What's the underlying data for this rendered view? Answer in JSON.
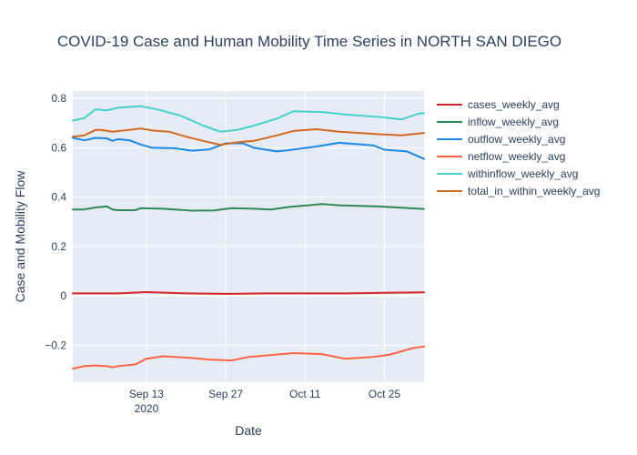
{
  "chart_data": {
    "type": "line",
    "title": "COVID-19 Case and Human Mobility Time Series in NORTH SAN DIEGO",
    "xlabel": "Date",
    "ylabel": "Case and Mobility Flow",
    "ylim": [
      -0.35,
      0.83
    ],
    "yticks": [
      {
        "value": 0.8,
        "label": "0.8"
      },
      {
        "value": 0.6,
        "label": "0.6"
      },
      {
        "value": 0.4,
        "label": "0.4"
      },
      {
        "value": 0.2,
        "label": "0.2"
      },
      {
        "value": 0,
        "label": "0"
      },
      {
        "value": -0.2,
        "label": "−0.2"
      }
    ],
    "xrange": [
      "2020-08-31",
      "2020-11-01"
    ],
    "xticks": [
      {
        "date": "2020-09-13",
        "label": "Sep 13",
        "sublabel": "2020"
      },
      {
        "date": "2020-09-27",
        "label": "Sep 27",
        "sublabel": ""
      },
      {
        "date": "2020-10-11",
        "label": "Oct 11",
        "sublabel": ""
      },
      {
        "date": "2020-10-25",
        "label": "Oct 25",
        "sublabel": ""
      }
    ],
    "grid": true,
    "legend_position": "right",
    "series": [
      {
        "name": "cases_weekly_avg",
        "color": "#d62728",
        "points": [
          [
            "2020-08-31",
            0.01
          ],
          [
            "2020-09-08",
            0.01
          ],
          [
            "2020-09-13",
            0.015
          ],
          [
            "2020-09-20",
            0.01
          ],
          [
            "2020-09-27",
            0.008
          ],
          [
            "2020-10-04",
            0.01
          ],
          [
            "2020-10-11",
            0.01
          ],
          [
            "2020-10-18",
            0.01
          ],
          [
            "2020-10-25",
            0.012
          ],
          [
            "2020-11-01",
            0.014
          ]
        ]
      },
      {
        "name": "inflow_weekly_avg",
        "color": "#2e8b57",
        "points": [
          [
            "2020-08-31",
            0.35
          ],
          [
            "2020-09-02",
            0.35
          ],
          [
            "2020-09-04",
            0.358
          ],
          [
            "2020-09-06",
            0.362
          ],
          [
            "2020-09-07",
            0.35
          ],
          [
            "2020-09-08",
            0.347
          ],
          [
            "2020-09-11",
            0.347
          ],
          [
            "2020-09-12",
            0.355
          ],
          [
            "2020-09-16",
            0.353
          ],
          [
            "2020-09-21",
            0.345
          ],
          [
            "2020-09-25",
            0.346
          ],
          [
            "2020-09-28",
            0.355
          ],
          [
            "2020-10-02",
            0.353
          ],
          [
            "2020-10-05",
            0.35
          ],
          [
            "2020-10-08",
            0.36
          ],
          [
            "2020-10-14",
            0.372
          ],
          [
            "2020-10-17",
            0.367
          ],
          [
            "2020-10-24",
            0.362
          ],
          [
            "2020-11-01",
            0.352
          ]
        ]
      },
      {
        "name": "outflow_weekly_avg",
        "color": "#1e88e5",
        "points": [
          [
            "2020-08-31",
            0.64
          ],
          [
            "2020-09-02",
            0.63
          ],
          [
            "2020-09-04",
            0.64
          ],
          [
            "2020-09-06",
            0.638
          ],
          [
            "2020-09-07",
            0.628
          ],
          [
            "2020-09-08",
            0.635
          ],
          [
            "2020-09-10",
            0.63
          ],
          [
            "2020-09-12",
            0.613
          ],
          [
            "2020-09-14",
            0.6
          ],
          [
            "2020-09-18",
            0.598
          ],
          [
            "2020-09-21",
            0.588
          ],
          [
            "2020-09-24",
            0.593
          ],
          [
            "2020-09-27",
            0.618
          ],
          [
            "2020-09-30",
            0.618
          ],
          [
            "2020-10-02",
            0.6
          ],
          [
            "2020-10-06",
            0.585
          ],
          [
            "2020-10-08",
            0.59
          ],
          [
            "2020-10-13",
            0.605
          ],
          [
            "2020-10-17",
            0.62
          ],
          [
            "2020-10-23",
            0.61
          ],
          [
            "2020-10-25",
            0.592
          ],
          [
            "2020-10-29",
            0.585
          ],
          [
            "2020-11-01",
            0.555
          ]
        ]
      },
      {
        "name": "netflow_weekly_avg",
        "color": "#ff6347",
        "points": [
          [
            "2020-08-31",
            -0.295
          ],
          [
            "2020-09-02",
            -0.285
          ],
          [
            "2020-09-04",
            -0.282
          ],
          [
            "2020-09-06",
            -0.285
          ],
          [
            "2020-09-07",
            -0.29
          ],
          [
            "2020-09-08",
            -0.285
          ],
          [
            "2020-09-11",
            -0.278
          ],
          [
            "2020-09-13",
            -0.255
          ],
          [
            "2020-09-16",
            -0.245
          ],
          [
            "2020-09-21",
            -0.252
          ],
          [
            "2020-09-24",
            -0.258
          ],
          [
            "2020-09-28",
            -0.262
          ],
          [
            "2020-10-01",
            -0.248
          ],
          [
            "2020-10-06",
            -0.238
          ],
          [
            "2020-10-09",
            -0.232
          ],
          [
            "2020-10-14",
            -0.236
          ],
          [
            "2020-10-18",
            -0.255
          ],
          [
            "2020-10-23",
            -0.248
          ],
          [
            "2020-10-26",
            -0.238
          ],
          [
            "2020-10-30",
            -0.212
          ],
          [
            "2020-11-01",
            -0.205
          ]
        ]
      },
      {
        "name": "withinflow_weekly_avg",
        "color": "#48d1cc",
        "points": [
          [
            "2020-08-31",
            0.71
          ],
          [
            "2020-09-02",
            0.72
          ],
          [
            "2020-09-04",
            0.755
          ],
          [
            "2020-09-06",
            0.752
          ],
          [
            "2020-09-08",
            0.762
          ],
          [
            "2020-09-12",
            0.768
          ],
          [
            "2020-09-15",
            0.755
          ],
          [
            "2020-09-19",
            0.73
          ],
          [
            "2020-09-23",
            0.69
          ],
          [
            "2020-09-26",
            0.665
          ],
          [
            "2020-09-29",
            0.672
          ],
          [
            "2020-10-02",
            0.69
          ],
          [
            "2020-10-06",
            0.718
          ],
          [
            "2020-10-09",
            0.748
          ],
          [
            "2020-10-14",
            0.745
          ],
          [
            "2020-10-18",
            0.735
          ],
          [
            "2020-10-24",
            0.725
          ],
          [
            "2020-10-28",
            0.715
          ],
          [
            "2020-10-31",
            0.738
          ],
          [
            "2020-11-01",
            0.74
          ]
        ]
      },
      {
        "name": "total_in_within_weekly_avg",
        "color": "#d2691e",
        "points": [
          [
            "2020-08-31",
            0.645
          ],
          [
            "2020-09-02",
            0.65
          ],
          [
            "2020-09-04",
            0.672
          ],
          [
            "2020-09-05",
            0.672
          ],
          [
            "2020-09-07",
            0.665
          ],
          [
            "2020-09-09",
            0.67
          ],
          [
            "2020-09-12",
            0.678
          ],
          [
            "2020-09-14",
            0.67
          ],
          [
            "2020-09-17",
            0.665
          ],
          [
            "2020-09-20",
            0.645
          ],
          [
            "2020-09-23",
            0.628
          ],
          [
            "2020-09-26",
            0.612
          ],
          [
            "2020-09-29",
            0.622
          ],
          [
            "2020-10-02",
            0.628
          ],
          [
            "2020-10-06",
            0.65
          ],
          [
            "2020-10-09",
            0.668
          ],
          [
            "2020-10-13",
            0.675
          ],
          [
            "2020-10-17",
            0.665
          ],
          [
            "2020-10-24",
            0.655
          ],
          [
            "2020-10-28",
            0.65
          ],
          [
            "2020-11-01",
            0.66
          ]
        ]
      }
    ]
  }
}
